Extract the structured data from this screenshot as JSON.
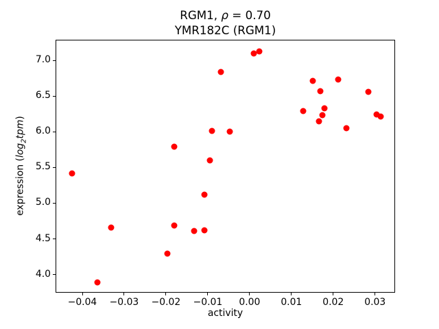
{
  "title": {
    "line1_prefix": "RGM1, ",
    "line1_rho": "ρ",
    "line1_rest": " = 0.70",
    "line2": "YMR182C (RGM1)"
  },
  "axes": {
    "xlabel": "activity",
    "ylabel_prefix": "expression (",
    "ylabel_log": "log",
    "ylabel_sub": "2",
    "ylabel_tpm": "tpm",
    "ylabel_suffix": ")"
  },
  "chart_data": {
    "type": "scatter",
    "title": "RGM1, ρ = 0.70",
    "subtitle": "YMR182C (RGM1)",
    "xlabel": "activity",
    "ylabel": "expression (log2 tpm)",
    "xlim": [
      -0.0464,
      0.0348
    ],
    "ylim": [
      3.747,
      7.293
    ],
    "x_ticks": [
      -0.04,
      -0.03,
      -0.02,
      -0.01,
      0.0,
      0.01,
      0.02,
      0.03
    ],
    "y_ticks": [
      4.0,
      4.5,
      5.0,
      5.5,
      6.0,
      6.5,
      7.0
    ],
    "grid": false,
    "legend": null,
    "marker_color": "#ff0000",
    "marker_diameter_px": 9,
    "points": [
      {
        "x": -0.0427,
        "y": 5.43
      },
      {
        "x": -0.0365,
        "y": 3.9
      },
      {
        "x": -0.0333,
        "y": 4.67
      },
      {
        "x": -0.0198,
        "y": 4.3
      },
      {
        "x": -0.0182,
        "y": 4.7
      },
      {
        "x": -0.0182,
        "y": 5.8
      },
      {
        "x": -0.0134,
        "y": 4.62
      },
      {
        "x": -0.011,
        "y": 4.63
      },
      {
        "x": -0.011,
        "y": 5.13
      },
      {
        "x": -0.0097,
        "y": 5.61
      },
      {
        "x": -0.0092,
        "y": 6.02
      },
      {
        "x": -0.0071,
        "y": 6.85
      },
      {
        "x": -0.0049,
        "y": 6.01
      },
      {
        "x": 0.0009,
        "y": 7.11
      },
      {
        "x": 0.0021,
        "y": 7.13
      },
      {
        "x": 0.0127,
        "y": 6.3
      },
      {
        "x": 0.015,
        "y": 6.72
      },
      {
        "x": 0.0164,
        "y": 6.16
      },
      {
        "x": 0.0168,
        "y": 6.58
      },
      {
        "x": 0.0172,
        "y": 6.24
      },
      {
        "x": 0.0178,
        "y": 6.34
      },
      {
        "x": 0.0211,
        "y": 6.74
      },
      {
        "x": 0.023,
        "y": 6.06
      },
      {
        "x": 0.0283,
        "y": 6.57
      },
      {
        "x": 0.0302,
        "y": 6.25
      },
      {
        "x": 0.0312,
        "y": 6.22
      }
    ]
  }
}
